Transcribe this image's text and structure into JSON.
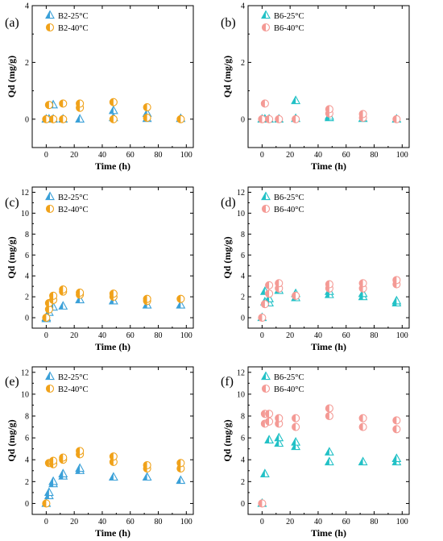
{
  "colors": {
    "b2_25": "#3aa0d8",
    "b2_40": "#f0a21a",
    "b6_25": "#22c1c6",
    "b6_40": "#f49a95"
  },
  "chart_data": [
    {
      "panel": "(a)",
      "type": "scatter",
      "xlabel": "Time (h)",
      "ylabel": "Qd (mg/g)",
      "xlim": [
        -10,
        105
      ],
      "ylim": [
        -1,
        4
      ],
      "xticks": [
        0,
        20,
        40,
        60,
        80,
        100
      ],
      "yticks": [
        0,
        2,
        4
      ],
      "series": [
        {
          "name": "B2-25°C",
          "marker": "triangle",
          "color": "#3aa0d8",
          "points": [
            [
              0,
              0
            ],
            [
              2,
              0
            ],
            [
              5,
              0
            ],
            [
              5,
              0.5
            ],
            [
              12,
              0
            ],
            [
              24,
              0
            ],
            [
              48,
              0.05
            ],
            [
              48,
              0.3
            ],
            [
              72,
              0.02
            ],
            [
              72,
              0.2
            ],
            [
              96,
              0.02
            ]
          ]
        },
        {
          "name": "B2-40°C",
          "marker": "circle",
          "color": "#f0a21a",
          "points": [
            [
              0,
              0
            ],
            [
              2,
              0.5
            ],
            [
              5,
              0
            ],
            [
              12,
              0
            ],
            [
              12,
              0.55
            ],
            [
              24,
              0.4
            ],
            [
              24,
              0.55
            ],
            [
              48,
              0
            ],
            [
              48,
              0.6
            ],
            [
              72,
              0.05
            ],
            [
              72,
              0.42
            ],
            [
              96,
              0
            ]
          ]
        }
      ]
    },
    {
      "panel": "(b)",
      "type": "scatter",
      "xlabel": "Time (h)",
      "ylabel": "Qd (mg/g)",
      "xlim": [
        -10,
        105
      ],
      "ylim": [
        -1,
        4
      ],
      "xticks": [
        0,
        20,
        40,
        60,
        80,
        100
      ],
      "yticks": [
        0,
        2,
        4
      ],
      "series": [
        {
          "name": "B6-25°C",
          "marker": "triangle",
          "color": "#22c1c6",
          "points": [
            [
              0,
              0
            ],
            [
              2,
              0
            ],
            [
              5,
              0
            ],
            [
              12,
              0
            ],
            [
              24,
              0.02
            ],
            [
              24,
              0.65
            ],
            [
              48,
              0.05
            ],
            [
              48,
              0.1
            ],
            [
              72,
              0.02
            ],
            [
              96,
              0
            ]
          ]
        },
        {
          "name": "B6-40°C",
          "marker": "circle",
          "color": "#f49a95",
          "points": [
            [
              0,
              0
            ],
            [
              2,
              0.55
            ],
            [
              5,
              0
            ],
            [
              12,
              0
            ],
            [
              24,
              0
            ],
            [
              48,
              0.2
            ],
            [
              48,
              0.35
            ],
            [
              72,
              0.05
            ],
            [
              72,
              0.18
            ],
            [
              96,
              0
            ]
          ]
        }
      ]
    },
    {
      "panel": "(c)",
      "type": "scatter",
      "xlabel": "Time (h)",
      "ylabel": "Qd (mg/g)",
      "xlim": [
        -10,
        105
      ],
      "ylim": [
        -1,
        12.5
      ],
      "xticks": [
        0,
        20,
        40,
        60,
        80,
        100
      ],
      "yticks": [
        0,
        2,
        4,
        6,
        8,
        10,
        12
      ],
      "series": [
        {
          "name": "B2-25°C",
          "marker": "triangle",
          "color": "#3aa0d8",
          "points": [
            [
              0,
              0
            ],
            [
              0,
              -0.1
            ],
            [
              2,
              0.5
            ],
            [
              5,
              1.0
            ],
            [
              12,
              1.1
            ],
            [
              24,
              1.7
            ],
            [
              48,
              1.6
            ],
            [
              72,
              1.2
            ],
            [
              96,
              1.2
            ]
          ]
        },
        {
          "name": "B2-40°C",
          "marker": "circle",
          "color": "#f0a21a",
          "points": [
            [
              0,
              0
            ],
            [
              2,
              0.8
            ],
            [
              2,
              1.4
            ],
            [
              5,
              1.7
            ],
            [
              5,
              2.1
            ],
            [
              12,
              2.5
            ],
            [
              12,
              2.7
            ],
            [
              24,
              2.2
            ],
            [
              24,
              2.4
            ],
            [
              48,
              2.0
            ],
            [
              48,
              2.3
            ],
            [
              72,
              1.6
            ],
            [
              72,
              1.8
            ],
            [
              96,
              1.8
            ]
          ]
        }
      ]
    },
    {
      "panel": "(d)",
      "type": "scatter",
      "xlabel": "Time (h)",
      "ylabel": "Qd (mg/g)",
      "xlim": [
        -10,
        105
      ],
      "ylim": [
        -1,
        12.5
      ],
      "xticks": [
        0,
        20,
        40,
        60,
        80,
        100
      ],
      "yticks": [
        0,
        2,
        4,
        6,
        8,
        10,
        12
      ],
      "series": [
        {
          "name": "B6-25°C",
          "marker": "triangle",
          "color": "#22c1c6",
          "points": [
            [
              0,
              0
            ],
            [
              2,
              1.5
            ],
            [
              2,
              2.5
            ],
            [
              5,
              1.4
            ],
            [
              5,
              1.8
            ],
            [
              12,
              2.6
            ],
            [
              24,
              1.9
            ],
            [
              24,
              2.3
            ],
            [
              48,
              2.2
            ],
            [
              48,
              2.5
            ],
            [
              72,
              2.0
            ],
            [
              72,
              2.3
            ],
            [
              96,
              1.4
            ],
            [
              96,
              1.6
            ]
          ]
        },
        {
          "name": "B6-40°C",
          "marker": "circle",
          "color": "#f49a95",
          "points": [
            [
              0,
              0
            ],
            [
              2,
              1.3
            ],
            [
              5,
              2.3
            ],
            [
              5,
              3.1
            ],
            [
              12,
              2.8
            ],
            [
              12,
              3.3
            ],
            [
              24,
              2.1
            ],
            [
              48,
              2.8
            ],
            [
              48,
              3.2
            ],
            [
              72,
              2.8
            ],
            [
              72,
              3.3
            ],
            [
              96,
              3.2
            ],
            [
              96,
              3.6
            ]
          ]
        }
      ]
    },
    {
      "panel": "(e)",
      "type": "scatter",
      "xlabel": "Time (h)",
      "ylabel": "Qd (mg/g)",
      "xlim": [
        -10,
        105
      ],
      "ylim": [
        -1,
        12.5
      ],
      "xticks": [
        0,
        20,
        40,
        60,
        80,
        100
      ],
      "yticks": [
        0,
        2,
        4,
        6,
        8,
        10,
        12
      ],
      "series": [
        {
          "name": "B2-25°C",
          "marker": "triangle",
          "color": "#3aa0d8",
          "points": [
            [
              0,
              0
            ],
            [
              2,
              0.7
            ],
            [
              2,
              1.0
            ],
            [
              5,
              1.8
            ],
            [
              5,
              2.0
            ],
            [
              12,
              2.5
            ],
            [
              12,
              2.7
            ],
            [
              24,
              3.0
            ],
            [
              24,
              3.2
            ],
            [
              48,
              2.4
            ],
            [
              72,
              2.4
            ],
            [
              96,
              2.1
            ]
          ]
        },
        {
          "name": "B2-40°C",
          "marker": "circle",
          "color": "#f0a21a",
          "points": [
            [
              0,
              0
            ],
            [
              2,
              3.7
            ],
            [
              5,
              3.6
            ],
            [
              5,
              3.9
            ],
            [
              12,
              4.0
            ],
            [
              12,
              4.2
            ],
            [
              24,
              4.5
            ],
            [
              24,
              4.8
            ],
            [
              48,
              3.8
            ],
            [
              48,
              4.3
            ],
            [
              72,
              3.2
            ],
            [
              72,
              3.5
            ],
            [
              96,
              3.2
            ],
            [
              96,
              3.7
            ]
          ]
        }
      ]
    },
    {
      "panel": "(f)",
      "type": "scatter",
      "xlabel": "Time (h)",
      "ylabel": "Qd (mg/g)",
      "xlim": [
        -10,
        105
      ],
      "ylim": [
        -1,
        12.5
      ],
      "xticks": [
        0,
        20,
        40,
        60,
        80,
        100
      ],
      "yticks": [
        0,
        2,
        4,
        6,
        8,
        10,
        12
      ],
      "series": [
        {
          "name": "B6-25°C",
          "marker": "triangle",
          "color": "#22c1c6",
          "points": [
            [
              0,
              0
            ],
            [
              2,
              2.7
            ],
            [
              5,
              5.8
            ],
            [
              12,
              5.5
            ],
            [
              12,
              6.0
            ],
            [
              24,
              5.2
            ],
            [
              24,
              5.6
            ],
            [
              48,
              3.8
            ],
            [
              48,
              4.7
            ],
            [
              72,
              3.8
            ],
            [
              96,
              3.8
            ],
            [
              96,
              4.1
            ]
          ]
        },
        {
          "name": "B6-40°C",
          "marker": "circle",
          "color": "#f49a95",
          "points": [
            [
              0,
              0
            ],
            [
              2,
              7.3
            ],
            [
              2,
              8.2
            ],
            [
              5,
              7.5
            ],
            [
              5,
              8.2
            ],
            [
              12,
              7.3
            ],
            [
              12,
              7.8
            ],
            [
              24,
              7.0
            ],
            [
              24,
              7.8
            ],
            [
              48,
              8.0
            ],
            [
              48,
              8.7
            ],
            [
              72,
              7.0
            ],
            [
              72,
              7.8
            ],
            [
              96,
              6.8
            ],
            [
              96,
              7.6
            ]
          ]
        }
      ]
    }
  ]
}
